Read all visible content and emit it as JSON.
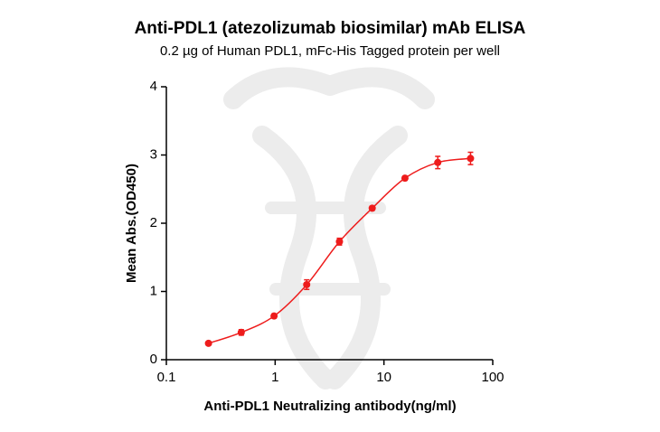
{
  "chart_data": {
    "type": "scatter",
    "title": "Anti-PDL1 (atezolizumab biosimilar) mAb ELISA",
    "subtitle": "0.2 µg of Human PDL1, mFc-His Tagged protein per well",
    "x_label": "Anti-PDL1 Neutralizing antibody(ng/ml)",
    "y_label": "Mean Abs.(OD450)",
    "x": [
      0.244,
      0.488,
      0.977,
      1.95,
      3.9,
      7.8,
      15.6,
      31.25,
      62.5
    ],
    "values": [
      0.24,
      0.4,
      0.64,
      1.1,
      1.73,
      2.22,
      2.66,
      2.89,
      2.95
    ],
    "errors": [
      0.02,
      0.04,
      0.03,
      0.07,
      0.05,
      0.03,
      0.03,
      0.09,
      0.09
    ],
    "color": "#ee1c1c",
    "x_scale": "log",
    "xlim": [
      0.1,
      100
    ],
    "xticks": [
      0.1,
      1,
      10,
      100
    ],
    "ylim": [
      0,
      4
    ],
    "yticks": [
      0,
      1,
      2,
      3,
      4
    ]
  }
}
